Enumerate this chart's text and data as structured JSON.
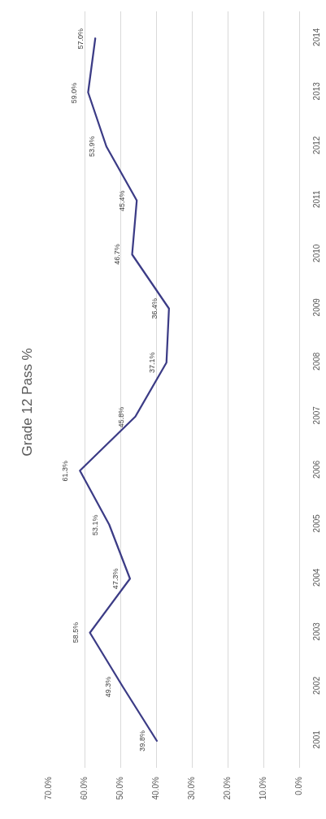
{
  "chart_data": {
    "type": "line",
    "title": "Grade 12 Pass %",
    "orientation": "horizontal",
    "categories": [
      "2014",
      "2013",
      "2012",
      "2011",
      "2010",
      "2009",
      "2008",
      "2007",
      "2006",
      "2005",
      "2004",
      "2003",
      "2002",
      "2001"
    ],
    "series": [
      {
        "color": "#3c3c86",
        "values": [
          57.0,
          59.0,
          53.9,
          45.4,
          46.7,
          36.4,
          37.1,
          45.8,
          61.3,
          53.1,
          47.3,
          58.5,
          49.3,
          39.8
        ],
        "value_labels": [
          "57.0%",
          "59.0%",
          "53.9%",
          "45.4%",
          "46.7%",
          "36.4%",
          "37.1%",
          "45.8%",
          "61.3%",
          "53.1%",
          "47.3%",
          "58.5%",
          "49.3%",
          "39.8%"
        ]
      }
    ],
    "xlim": [
      70,
      0
    ],
    "xticks": [
      {
        "value": 70,
        "label": "70.0%"
      },
      {
        "value": 60,
        "label": "60.0%"
      },
      {
        "value": 50,
        "label": "50.0%"
      },
      {
        "value": 40,
        "label": "40.0%"
      },
      {
        "value": 30,
        "label": "30.0%"
      },
      {
        "value": 20,
        "label": "20.0%"
      },
      {
        "value": 10,
        "label": "10.0%"
      },
      {
        "value": 0,
        "label": "0.0%"
      }
    ],
    "grid": "x"
  }
}
